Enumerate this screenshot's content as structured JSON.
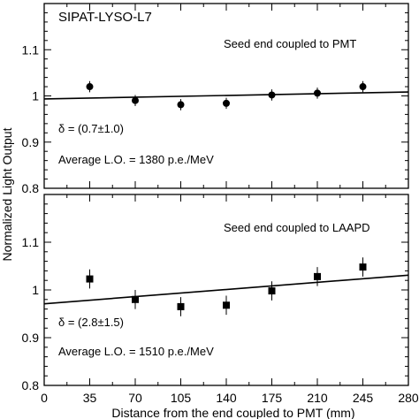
{
  "chart_data": [
    {
      "type": "scatter",
      "title": "SIPAT-LYSO-L7",
      "annotation": "Seed end coupled to PMT",
      "delta_text": "δ = (0.7±1.0)",
      "avg_text": "Average L.O. = 1380 p.e./MeV",
      "marker": "circle",
      "ylim": [
        0.8,
        1.2
      ],
      "yticks": [
        "0.8",
        "0.9",
        "1",
        "1.1"
      ],
      "x": [
        35,
        70,
        105,
        140,
        175,
        210,
        245
      ],
      "y": [
        1.02,
        0.99,
        0.981,
        0.984,
        1.002,
        1.006,
        1.02
      ],
      "yerr": [
        0.012,
        0.012,
        0.012,
        0.012,
        0.012,
        0.012,
        0.012
      ],
      "fit": {
        "intercept": 0.9935,
        "slope": 5.36e-05
      }
    },
    {
      "type": "scatter",
      "annotation": "Seed end coupled to LAAPD",
      "delta_text": "δ = (2.8±1.5)",
      "avg_text": "Average L.O. = 1510 p.e./MeV",
      "marker": "square",
      "ylim": [
        0.8,
        1.2
      ],
      "yticks": [
        "0.8",
        "0.9",
        "1",
        "1.1"
      ],
      "x": [
        35,
        70,
        105,
        140,
        175,
        210,
        245
      ],
      "y": [
        1.023,
        0.98,
        0.965,
        0.968,
        0.998,
        1.028,
        1.048
      ],
      "yerr": [
        0.02,
        0.02,
        0.02,
        0.02,
        0.02,
        0.02,
        0.02
      ],
      "fit": {
        "intercept": 0.971,
        "slope": 0.000214
      }
    }
  ],
  "axes": {
    "xlabel": "Distance from the end coupled to PMT (mm)",
    "ylabel": "Normalized Light Output",
    "xlim": [
      0,
      280
    ],
    "xticks": [
      "0",
      "35",
      "70",
      "105",
      "140",
      "175",
      "210",
      "245",
      "280"
    ]
  }
}
